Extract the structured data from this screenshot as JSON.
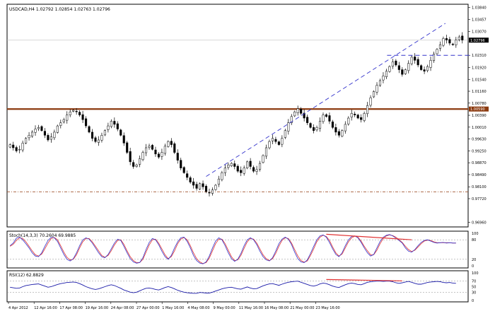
{
  "main_panel": {
    "symbol_info": "USDCAD,H4  1.02792 1.02854 1.02763 1.02796",
    "price_labels": [
      "1.03840",
      "1.03457",
      "1.03070",
      "1.02310",
      "1.01920",
      "1.01540",
      "1.01160",
      "1.00780",
      "1.00390",
      "1.00010",
      "0.99630",
      "0.99250",
      "0.98870",
      "0.98490",
      "0.98100",
      "0.97720",
      "0.96960"
    ],
    "current_price": "1.02796",
    "highlight_level": "1.00590"
  },
  "stoch_panel": {
    "title": "Stoch(14,3,3) 70.2604 69.9885",
    "levels": [
      "100",
      "80",
      "20",
      "0"
    ]
  },
  "rsi_panel": {
    "title": "RSI(12) 62.8829",
    "levels": [
      "100",
      "70",
      "50",
      "30",
      "0"
    ]
  },
  "time_axis": {
    "labels": [
      "4 Apr 2012",
      "12 Apr 16:00",
      "17 Apr 08:00",
      "19 Apr 16:00",
      "24 Apr 08:00",
      "27 Apr 00:00",
      "1 May 16:00",
      "4 May 08:00",
      "9 May 00:00",
      "11 May 16:00",
      "16 May 08:00",
      "21 May 00:00",
      "23 May 16:00"
    ]
  },
  "colors": {
    "bull_candle": "#ffffff",
    "bear_candle": "#000000",
    "resistance_line": "#8b3a0f",
    "trendline": "#3333cc",
    "stoch_main": "#3333cc",
    "stoch_signal": "#e03030",
    "rsi_line": "#1a1aa8",
    "divergence_line": "#e03030",
    "support_line": "#a0522d"
  },
  "chart_data": {
    "type": "candlestick",
    "symbol": "USDCAD",
    "timeframe": "H4",
    "ohlc_last": {
      "open": 1.02792,
      "high": 1.02854,
      "low": 1.02763,
      "close": 1.02796
    },
    "close_series": [
      0.9945,
      0.9935,
      0.9925,
      0.993,
      0.995,
      0.9965,
      0.9975,
      0.9985,
      0.9995,
      1.0,
      0.999,
      0.9975,
      0.996,
      0.997,
      0.9985,
      1.0005,
      1.0015,
      1.0025,
      1.004,
      1.005,
      1.0055,
      1.005,
      1.004,
      1.0025,
      1.0005,
      0.9985,
      0.9965,
      0.9955,
      0.996,
      0.9975,
      0.999,
      1.0005,
      1.002,
      1.001,
      0.9995,
      0.9975,
      0.995,
      0.992,
      0.989,
      0.9875,
      0.988,
      0.99,
      0.992,
      0.9935,
      0.994,
      0.993,
      0.9915,
      0.9905,
      0.992,
      0.994,
      0.9955,
      0.9945,
      0.992,
      0.9895,
      0.987,
      0.9855,
      0.984,
      0.9825,
      0.9815,
      0.9805,
      0.982,
      0.981,
      0.9795,
      0.979,
      0.98,
      0.9815,
      0.9835,
      0.9855,
      0.987,
      0.988,
      0.9885,
      0.9875,
      0.986,
      0.9855,
      0.987,
      0.989,
      0.9875,
      0.986,
      0.9865,
      0.9885,
      0.991,
      0.9935,
      0.9955,
      0.9965,
      0.9955,
      0.9945,
      0.9965,
      0.999,
      1.0015,
      1.0035,
      1.005,
      1.006,
      1.0045,
      1.003,
      1.0015,
      1.0,
      0.999,
      1.0,
      1.002,
      1.004,
      1.0035,
      1.002,
      1.0,
      0.9985,
      0.9975,
      0.999,
      1.001,
      1.003,
      1.0045,
      1.004,
      1.003,
      1.0025,
      1.0045,
      1.007,
      1.0095,
      1.0115,
      1.0135,
      1.015,
      1.0165,
      1.018,
      1.0195,
      1.021,
      1.02,
      1.0185,
      1.017,
      1.0185,
      1.0205,
      1.0225,
      1.0215,
      1.02,
      1.0185,
      1.018,
      1.0195,
      1.0215,
      1.0235,
      1.025,
      1.0265,
      1.0285,
      1.028,
      1.027,
      1.0265,
      1.028,
      1.029,
      1.028
    ],
    "horizontal_levels": [
      1.0059,
      0.9794
    ],
    "dashed_resistance": 1.0231,
    "trendline": {
      "from": [
        62,
        0.9843
      ],
      "to": [
        122,
        1.027
      ]
    },
    "stoch_main": [
      62,
      70,
      85,
      88,
      80,
      68,
      55,
      40,
      30,
      28,
      40,
      60,
      78,
      88,
      86,
      75,
      55,
      35,
      20,
      15,
      22,
      40,
      62,
      80,
      86,
      82,
      70,
      55,
      40,
      28,
      25,
      35,
      52,
      70,
      82,
      78,
      60,
      40,
      22,
      12,
      8,
      10,
      25,
      50,
      72,
      84,
      80,
      65,
      45,
      28,
      20,
      32,
      55,
      74,
      86,
      88,
      75,
      55,
      32,
      16,
      8,
      6,
      12,
      30,
      55,
      76,
      86,
      80,
      62,
      40,
      22,
      14,
      20,
      38,
      62,
      80,
      86,
      80,
      65,
      45,
      28,
      18,
      15,
      25,
      45,
      68,
      82,
      88,
      82,
      65,
      42,
      22,
      12,
      10,
      18,
      38,
      60,
      80,
      92,
      95,
      88,
      72,
      52,
      35,
      28,
      40,
      62,
      80,
      90,
      92,
      86,
      72,
      55,
      40,
      30,
      35,
      55,
      75,
      88,
      94,
      96,
      92,
      85,
      78,
      70,
      55,
      45,
      42,
      50,
      62,
      72,
      78,
      80,
      76,
      72,
      70,
      71,
      72,
      70,
      71,
      70,
      70
    ],
    "stoch_signal": [
      60,
      66,
      78,
      86,
      84,
      74,
      60,
      46,
      34,
      30,
      36,
      52,
      70,
      84,
      87,
      80,
      62,
      42,
      26,
      18,
      20,
      34,
      55,
      74,
      84,
      84,
      74,
      60,
      46,
      32,
      26,
      32,
      46,
      64,
      78,
      80,
      66,
      46,
      28,
      16,
      10,
      10,
      20,
      42,
      64,
      80,
      82,
      70,
      52,
      34,
      22,
      28,
      46,
      68,
      82,
      87,
      80,
      62,
      40,
      22,
      12,
      7,
      10,
      24,
      46,
      68,
      82,
      82,
      68,
      48,
      28,
      16,
      18,
      32,
      54,
      74,
      84,
      82,
      70,
      52,
      34,
      22,
      16,
      22,
      38,
      60,
      78,
      86,
      84,
      70,
      50,
      30,
      16,
      11,
      15,
      32,
      52,
      74,
      88,
      94,
      90,
      78,
      58,
      40,
      30,
      36,
      55,
      74,
      86,
      91,
      88,
      76,
      60,
      46,
      34,
      34,
      48,
      68,
      84,
      92,
      95,
      93,
      88,
      80,
      72,
      60,
      50,
      44,
      48,
      58,
      68,
      76,
      79,
      78,
      74,
      71,
      71,
      71,
      71,
      71,
      70,
      70
    ],
    "rsi": [
      48,
      46,
      44,
      45,
      50,
      54,
      56,
      58,
      59,
      60,
      56,
      52,
      48,
      50,
      54,
      58,
      61,
      63,
      65,
      66,
      67,
      65,
      61,
      56,
      50,
      46,
      42,
      40,
      42,
      46,
      50,
      54,
      57,
      54,
      49,
      44,
      38,
      34,
      30,
      28,
      30,
      35,
      40,
      44,
      45,
      43,
      40,
      38,
      42,
      47,
      50,
      47,
      42,
      37,
      33,
      30,
      28,
      27,
      26,
      26,
      29,
      28,
      27,
      27,
      30,
      34,
      38,
      42,
      45,
      47,
      48,
      45,
      42,
      41,
      45,
      49,
      45,
      42,
      43,
      48,
      53,
      57,
      60,
      61,
      58,
      55,
      59,
      63,
      66,
      68,
      69,
      70,
      66,
      62,
      58,
      54,
      52,
      55,
      60,
      63,
      61,
      57,
      52,
      49,
      47,
      52,
      57,
      61,
      63,
      61,
      58,
      57,
      61,
      66,
      68,
      69,
      70,
      70,
      69,
      70,
      70,
      68,
      64,
      62,
      64,
      67,
      69,
      66,
      62,
      59,
      59,
      62,
      65,
      67,
      68,
      69,
      68,
      65,
      64,
      65,
      63,
      62
    ]
  }
}
